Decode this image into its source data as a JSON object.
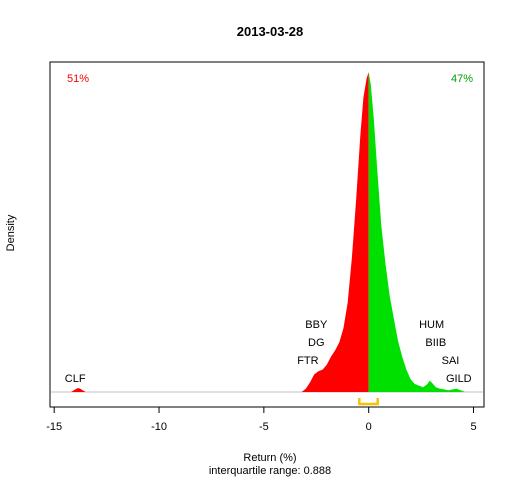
{
  "chart_data": {
    "type": "area",
    "title": "2013-03-28",
    "xlabel": "Return (%)",
    "ylabel": "Density",
    "subtitle": "interquartile range: 0.888",
    "xlim": [
      -15.2,
      5.5
    ],
    "ylim": [
      0,
      1
    ],
    "x_ticks": [
      -15,
      -10,
      -5,
      0,
      5
    ],
    "grid": false,
    "percent_negative": "51%",
    "percent_positive": "47%",
    "colors": {
      "negative": "#ff0000",
      "positive": "#00e000",
      "iqr": "#f5c400",
      "baseline": "#c0c0c0",
      "axis": "#000000"
    },
    "iqr": [
      -0.45,
      0.43
    ],
    "density": {
      "x": [
        -14.2,
        -14.05,
        -13.9,
        -13.8,
        -13.65,
        -13.5,
        -3.2,
        -3.0,
        -2.8,
        -2.6,
        -2.4,
        -2.2,
        -2.0,
        -1.8,
        -1.6,
        -1.4,
        -1.2,
        -1.0,
        -0.8,
        -0.6,
        -0.4,
        -0.25,
        -0.1,
        0.0,
        0.1,
        0.25,
        0.4,
        0.6,
        0.8,
        1.0,
        1.2,
        1.4,
        1.6,
        1.8,
        2.0,
        2.2,
        2.4,
        2.6,
        2.8,
        2.9,
        3.0,
        3.2,
        3.4,
        3.6,
        3.8,
        4.0,
        4.2,
        4.4,
        4.6
      ],
      "y": [
        0.0,
        0.006,
        0.012,
        0.012,
        0.006,
        0.0,
        0.0,
        0.01,
        0.03,
        0.055,
        0.065,
        0.07,
        0.085,
        0.11,
        0.13,
        0.155,
        0.2,
        0.28,
        0.42,
        0.6,
        0.8,
        0.92,
        0.98,
        1.0,
        0.96,
        0.85,
        0.7,
        0.52,
        0.4,
        0.3,
        0.23,
        0.16,
        0.11,
        0.07,
        0.04,
        0.025,
        0.02,
        0.015,
        0.025,
        0.035,
        0.03,
        0.015,
        0.01,
        0.008,
        0.005,
        0.008,
        0.01,
        0.005,
        0.0
      ]
    },
    "annotations": [
      {
        "label": "CLF",
        "x": -14.0,
        "level": 0
      },
      {
        "label": "FTR",
        "x": -2.9,
        "level": 1
      },
      {
        "label": "DG",
        "x": -2.5,
        "level": 2
      },
      {
        "label": "BBY",
        "x": -2.5,
        "level": 3
      },
      {
        "label": "GILD",
        "x": 4.3,
        "level": 0
      },
      {
        "label": "SAI",
        "x": 3.9,
        "level": 1
      },
      {
        "label": "BIIB",
        "x": 3.2,
        "level": 2
      },
      {
        "label": "HUM",
        "x": 3.0,
        "level": 3
      }
    ]
  }
}
